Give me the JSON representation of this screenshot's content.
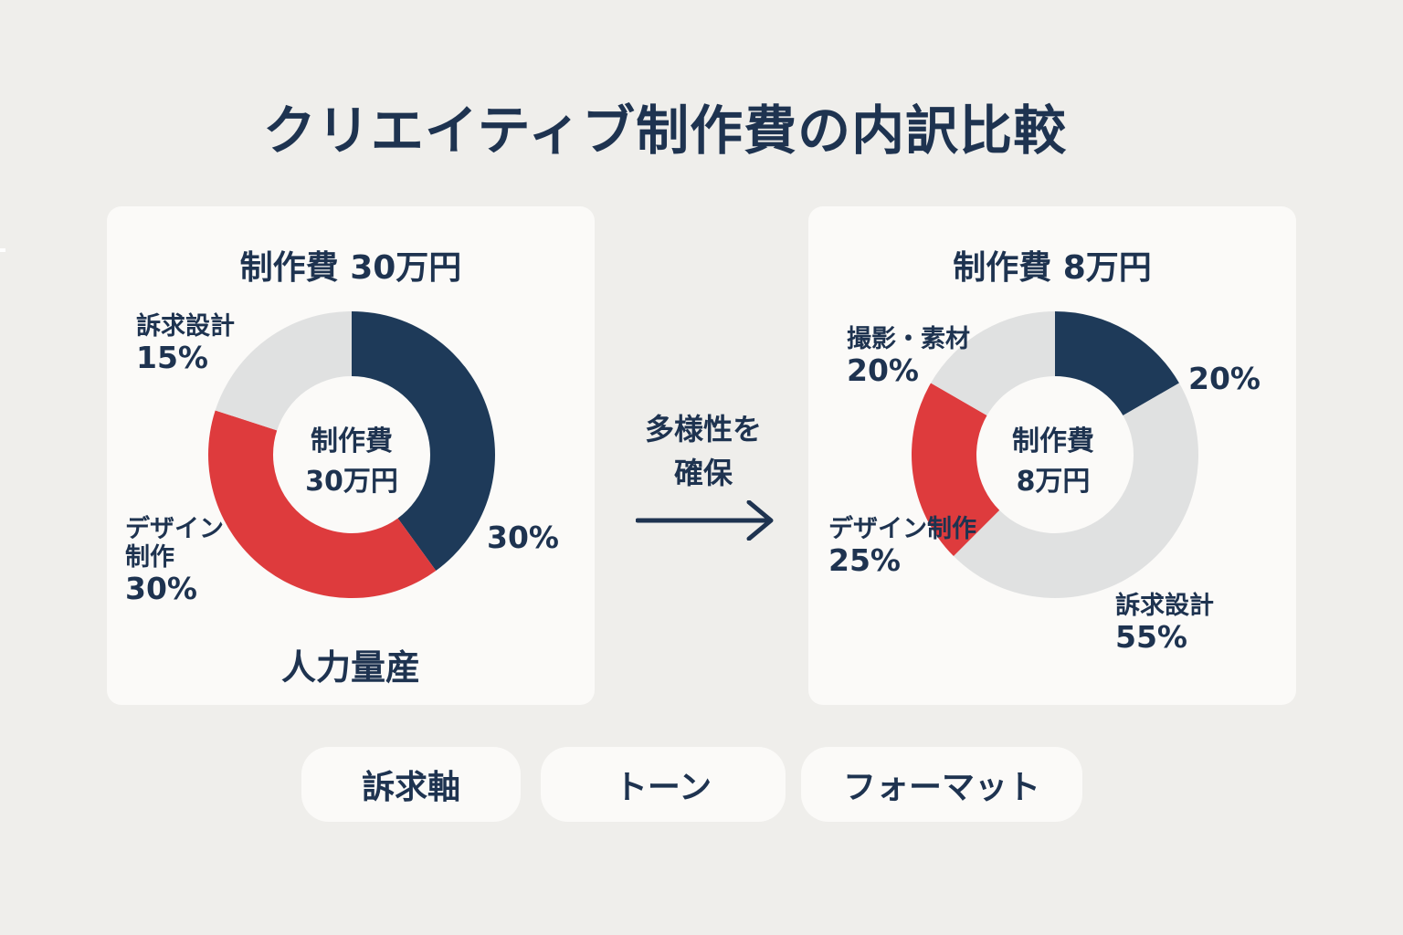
{
  "title": "クリエイティブ制作費の内訳比較",
  "colors": {
    "navy": "#1e3a59",
    "red": "#de3b3d",
    "gray": "#e0e1e1"
  },
  "left": {
    "heading": "制作費 30万円",
    "center_line1": "制作費",
    "center_line2": "30万円",
    "footer": "人力量産",
    "labels": {
      "appeal_name": "訴求設計",
      "appeal_pct": "15%",
      "design_name1": "デザイン",
      "design_name2": "制作",
      "design_pct": "30%",
      "navy_pct": "30%"
    }
  },
  "middle": {
    "line1": "多様性を",
    "line2": "確保"
  },
  "right": {
    "heading": "制作費 8万円",
    "center_line1": "制作費",
    "center_line2": "8万円",
    "labels": {
      "photo_name": "撮影・素材",
      "photo_pct": "20%",
      "navy_pct": "20%",
      "design_name": "デザイン制作",
      "design_pct": "25%",
      "appeal_name": "訴求設計",
      "appeal_pct": "55%"
    }
  },
  "chips": [
    "訴求軸",
    "トーン",
    "フォーマット"
  ],
  "chart_data": [
    {
      "type": "pie",
      "title": "制作費 30万円",
      "center_text": "制作費 30万円",
      "slices": [
        {
          "label": "",
          "value": 30,
          "display": "30%",
          "color": "#1e3a59"
        },
        {
          "label": "デザイン制作",
          "value": 30,
          "display": "30%",
          "color": "#de3b3d"
        },
        {
          "label": "訴求設計",
          "value": 15,
          "display": "15%",
          "color": "#e0e1e1"
        }
      ]
    },
    {
      "type": "pie",
      "title": "制作費 8万円",
      "center_text": "制作費 8万円",
      "slices": [
        {
          "label": "",
          "value": 20,
          "display": "20%",
          "color": "#1e3a59"
        },
        {
          "label": "訴求設計",
          "value": 55,
          "display": "55%",
          "color": "#e0e1e1"
        },
        {
          "label": "デザイン制作",
          "value": 25,
          "display": "25%",
          "color": "#de3b3d"
        },
        {
          "label": "撮影・素材",
          "value": 20,
          "display": "20%",
          "color": "#e0e1e1"
        }
      ]
    }
  ]
}
